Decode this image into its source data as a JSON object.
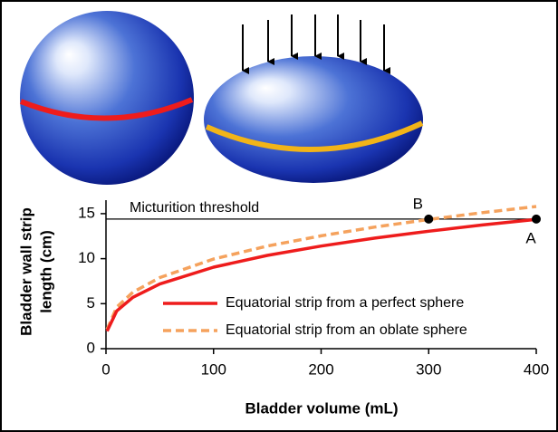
{
  "chart_data": {
    "type": "line",
    "x_label": "Bladder volume (mL)",
    "y_label": [
      "Bladder wall strip",
      "length (cm)"
    ],
    "x": [
      1,
      10,
      25,
      50,
      100,
      150,
      200,
      250,
      300,
      350,
      400
    ],
    "series": [
      {
        "name": "Equatorial strip from a perfect sphere",
        "color": "#ee1c1c",
        "dash": false,
        "values": [
          1.95,
          4.2,
          5.7,
          7.18,
          9.05,
          10.36,
          11.4,
          12.28,
          13.05,
          13.74,
          14.36
        ]
      },
      {
        "name": "Equatorial strip from an oblate sphere",
        "color": "#f5a25d",
        "dash": true,
        "values": [
          2.14,
          4.62,
          6.27,
          7.9,
          9.96,
          11.4,
          12.54,
          13.51,
          14.36,
          15.11,
          15.8
        ]
      }
    ],
    "threshold": {
      "label": "Micturition threshold",
      "value": 14.4,
      "x": [
        0,
        400
      ]
    },
    "points": [
      {
        "label": "B",
        "x": 300,
        "y": 14.4
      },
      {
        "label": "A",
        "x": 400,
        "y": 14.4
      }
    ],
    "xlim": [
      0,
      400
    ],
    "xticks": [
      0,
      100,
      200,
      300,
      400
    ],
    "ylim": [
      0,
      16.5
    ],
    "yticks": [
      0,
      5,
      10,
      15
    ]
  }
}
